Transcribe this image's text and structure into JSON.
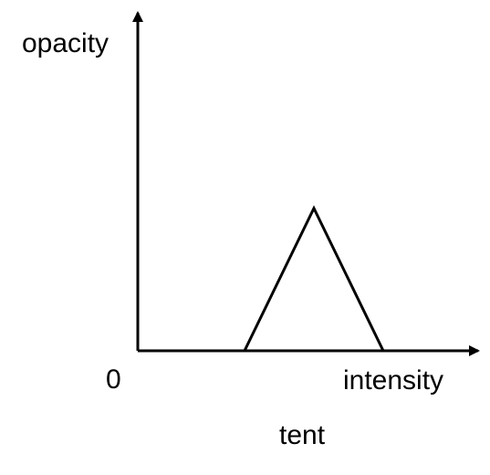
{
  "diagram": {
    "y_axis_label": "opacity",
    "x_axis_label": "intensity",
    "origin_label": "0",
    "caption": "tent",
    "line_color": "#000000",
    "background_color": "#ffffff"
  }
}
